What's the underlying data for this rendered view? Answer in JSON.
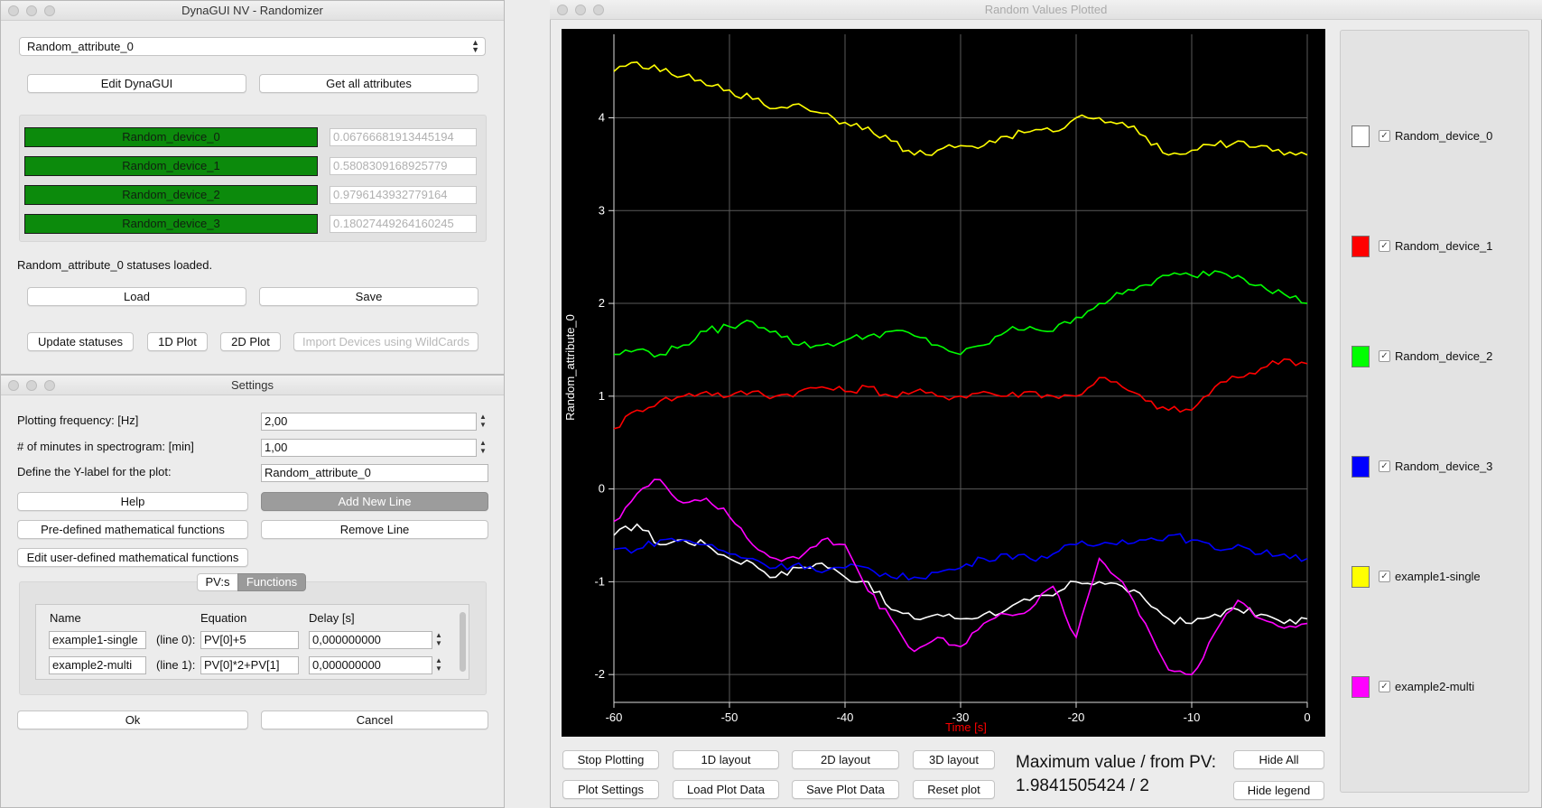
{
  "main_window": {
    "title": "DynaGUI NV - Randomizer",
    "attribute_select": "Random_attribute_0",
    "edit_button": "Edit DynaGUI",
    "get_all_button": "Get all attributes",
    "devices": [
      {
        "name": "Random_device_0",
        "value": "0.06766681913445194"
      },
      {
        "name": "Random_device_1",
        "value": "0.5808309168925779"
      },
      {
        "name": "Random_device_2",
        "value": "0.9796143932779164"
      },
      {
        "name": "Random_device_3",
        "value": "0.18027449264160245"
      }
    ],
    "status_text": "Random_attribute_0 statuses loaded.",
    "load_button": "Load",
    "save_button": "Save",
    "update_button": "Update statuses",
    "plot1d_button": "1D Plot",
    "plot2d_button": "2D Plot",
    "import_button": "Import Devices using WildCards"
  },
  "settings_window": {
    "title": "Settings",
    "freq_label": "Plotting frequency: [Hz]",
    "freq_value": "2,00",
    "minutes_label": "# of minutes in spectrogram: [min]",
    "minutes_value": "1,00",
    "ylabel_label": "Define the Y-label for the plot:",
    "ylabel_value": "Random_attribute_0",
    "help_button": "Help",
    "add_line_button": "Add New Line",
    "predef_button": "Pre-defined mathematical functions",
    "remove_line_button": "Remove Line",
    "userdef_button": "Edit user-defined mathematical functions",
    "tabs": [
      "PV:s",
      "Functions"
    ],
    "table_headers": {
      "name": "Name",
      "equation": "Equation",
      "delay": "Delay [s]"
    },
    "rows": [
      {
        "name": "example1-single",
        "line": "(line 0):",
        "equation": "PV[0]+5",
        "delay": "0,000000000"
      },
      {
        "name": "example2-multi",
        "line": "(line 1):",
        "equation": "PV[0]*2+PV[1]",
        "delay": "0,000000000"
      }
    ],
    "ok_button": "Ok",
    "cancel_button": "Cancel"
  },
  "plot_window": {
    "title": "Random Values Plotted",
    "buttons_row1": [
      "Stop Plotting",
      "1D layout",
      "2D layout",
      "3D layout"
    ],
    "buttons_row2": [
      "Plot Settings",
      "Load Plot Data",
      "Save Plot Data",
      "Reset plot"
    ],
    "max_label": "Maximum value / from PV:",
    "max_value": "1.9841505424 / 2",
    "hide_all_button": "Hide All",
    "hide_legend_button": "Hide legend",
    "legend": [
      {
        "name": "Random_device_0",
        "color": "#ffffff"
      },
      {
        "name": "Random_device_1",
        "color": "#ff0000"
      },
      {
        "name": "Random_device_2",
        "color": "#00ff00"
      },
      {
        "name": "Random_device_3",
        "color": "#0000ff"
      },
      {
        "name": "example1-single",
        "color": "#ffff00"
      },
      {
        "name": "example2-multi",
        "color": "#ff00ff"
      }
    ],
    "check_glyph": "✓"
  },
  "chart_data": {
    "type": "line",
    "xlabel": "Time [s]",
    "ylabel": "Random_attribute_0",
    "xlim": [
      -60,
      0
    ],
    "ylim": [
      -2.3,
      4.9
    ],
    "xticks": [
      "-60",
      "-50",
      "-40",
      "-30",
      "-20",
      "-10",
      "0"
    ],
    "yticks": [
      "-2",
      "-1",
      "0",
      "1",
      "2",
      "3",
      "4"
    ],
    "grid": true,
    "x": [
      -60,
      -58,
      -56,
      -54,
      -52,
      -50,
      -48,
      -46,
      -44,
      -42,
      -40,
      -38,
      -36,
      -34,
      -32,
      -30,
      -28,
      -26,
      -24,
      -22,
      -20,
      -18,
      -16,
      -14,
      -12,
      -10,
      -8,
      -6,
      -4,
      -2,
      0
    ],
    "series": [
      {
        "name": "Random_device_0",
        "color": "#ffffff",
        "values": [
          -0.5,
          -0.38,
          -0.6,
          -0.55,
          -0.6,
          -0.75,
          -0.8,
          -0.95,
          -0.85,
          -0.8,
          -0.95,
          -1.0,
          -1.3,
          -1.4,
          -1.35,
          -1.4,
          -1.35,
          -1.3,
          -1.2,
          -1.15,
          -1.0,
          -1.0,
          -1.05,
          -1.2,
          -1.4,
          -1.45,
          -1.35,
          -1.3,
          -1.35,
          -1.45,
          -1.4
        ]
      },
      {
        "name": "Random_device_1",
        "color": "#ff0000",
        "values": [
          0.65,
          0.85,
          0.95,
          1.0,
          1.05,
          1.0,
          1.05,
          1.0,
          1.05,
          1.1,
          1.05,
          1.1,
          1.0,
          1.05,
          1.0,
          1.0,
          1.05,
          1.0,
          1.05,
          1.0,
          1.0,
          1.2,
          1.1,
          0.95,
          0.85,
          0.85,
          1.1,
          1.2,
          1.3,
          1.4,
          1.35
        ]
      },
      {
        "name": "Random_device_2",
        "color": "#00ff00",
        "values": [
          1.45,
          1.5,
          1.45,
          1.55,
          1.7,
          1.75,
          1.8,
          1.7,
          1.55,
          1.55,
          1.6,
          1.65,
          1.7,
          1.65,
          1.55,
          1.45,
          1.55,
          1.7,
          1.75,
          1.7,
          1.85,
          2.0,
          2.1,
          2.2,
          2.3,
          2.3,
          2.35,
          2.3,
          2.2,
          2.1,
          2.0
        ]
      },
      {
        "name": "Random_device_3",
        "color": "#0000ff",
        "values": [
          -0.65,
          -0.65,
          -0.55,
          -0.55,
          -0.6,
          -0.7,
          -0.75,
          -0.85,
          -0.8,
          -0.9,
          -0.85,
          -0.85,
          -0.95,
          -0.95,
          -0.9,
          -0.85,
          -0.75,
          -0.7,
          -0.75,
          -0.7,
          -0.6,
          -0.6,
          -0.55,
          -0.55,
          -0.5,
          -0.55,
          -0.65,
          -0.6,
          -0.7,
          -0.7,
          -0.75
        ]
      },
      {
        "name": "example1-single",
        "color": "#ffff00",
        "values": [
          4.5,
          4.6,
          4.5,
          4.45,
          4.35,
          4.3,
          4.2,
          4.1,
          4.15,
          4.05,
          3.95,
          3.9,
          3.75,
          3.6,
          3.65,
          3.7,
          3.7,
          3.8,
          3.85,
          3.85,
          4.0,
          4.0,
          3.95,
          3.8,
          3.6,
          3.65,
          3.7,
          3.75,
          3.7,
          3.6,
          3.6
        ]
      },
      {
        "name": "example2-multi",
        "color": "#ff00ff",
        "values": [
          -0.35,
          -0.05,
          0.1,
          -0.15,
          -0.1,
          -0.3,
          -0.6,
          -0.75,
          -0.75,
          -0.55,
          -0.6,
          -1.1,
          -1.4,
          -1.75,
          -1.6,
          -1.7,
          -1.45,
          -1.35,
          -1.3,
          -1.05,
          -1.6,
          -0.75,
          -1.0,
          -1.45,
          -1.95,
          -2.0,
          -1.55,
          -1.2,
          -1.4,
          -1.5,
          -1.45
        ]
      }
    ]
  }
}
